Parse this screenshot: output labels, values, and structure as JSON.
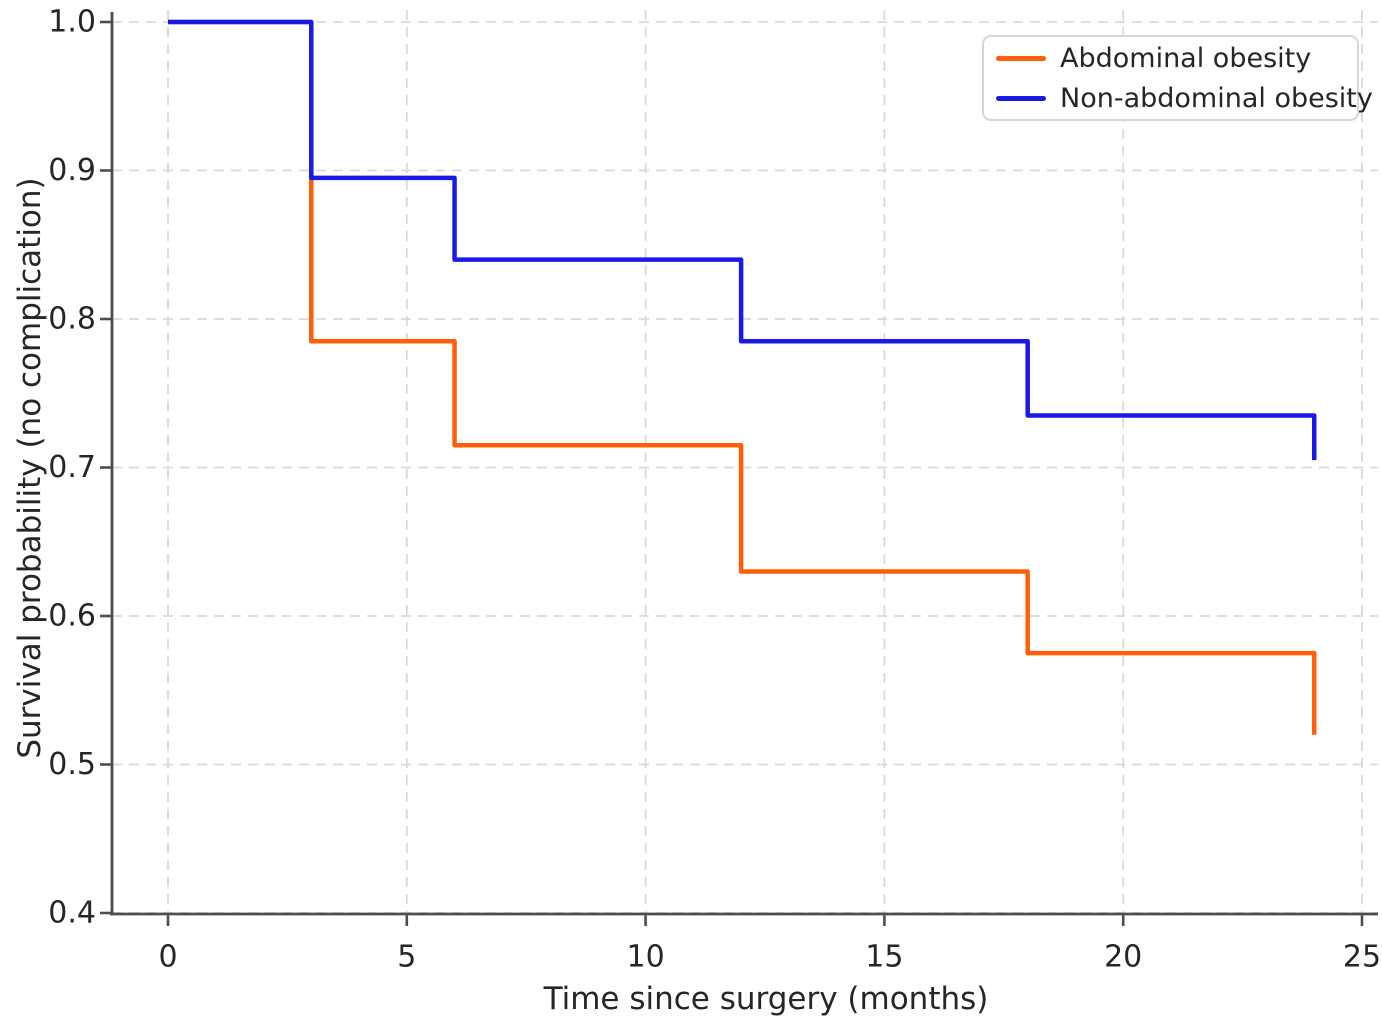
{
  "chart_data": {
    "type": "line",
    "chart_style": "kaplan_meier_step",
    "title": "",
    "xlabel": "Time since surgery (months)",
    "ylabel": "Survival probability (no complication)",
    "xlim": [
      -1.2,
      25.2
    ],
    "ylim": [
      0.4,
      1.0
    ],
    "xticks": [
      0,
      5,
      10,
      15,
      20,
      25
    ],
    "xtick_labels": [
      "0",
      "5",
      "10",
      "15",
      "20",
      "25"
    ],
    "yticks": [
      1.0,
      0.9,
      0.8,
      0.7,
      0.6,
      0.5,
      0.4
    ],
    "ytick_labels": [
      "1.0",
      "0.9",
      "0.8",
      "0.7",
      "0.6",
      "0.5",
      "0.4"
    ],
    "grid": true,
    "grid_style": "dashed",
    "legend_position": "upper right",
    "series": [
      {
        "name": "Abdominal obesity",
        "color": "#FF5F0A",
        "step_mode": "post",
        "x": [
          0,
          3,
          6,
          12,
          18,
          24
        ],
        "y": [
          1.0,
          0.785,
          0.715,
          0.63,
          0.575,
          0.52
        ]
      },
      {
        "name": "Non-abdominal obesity",
        "color": "#1A1AE6",
        "step_mode": "post",
        "x": [
          0,
          3,
          6,
          12,
          18,
          24
        ],
        "y": [
          1.0,
          0.895,
          0.84,
          0.785,
          0.735,
          0.705
        ]
      }
    ]
  },
  "colors": {
    "background": "#FFFFFF",
    "grid": "#D9D9D9",
    "spine": "#4D4D4D",
    "tick": "#4D4D4D",
    "text": "#262626",
    "legend_border": "#D6D6D6"
  }
}
